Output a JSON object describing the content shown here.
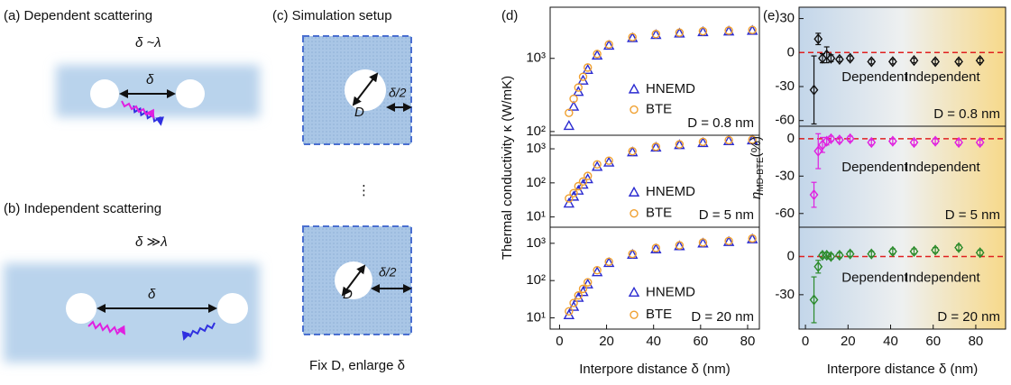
{
  "panels": {
    "a": {
      "label": "(a)  Dependent scattering",
      "relation": "δ ~λ",
      "distance": "δ"
    },
    "b": {
      "label": "(b) Independent scattering",
      "relation": "δ ≫λ",
      "distance": "δ"
    },
    "c": {
      "label": "(c)  Simulation setup",
      "pore": "D",
      "half_distance": "δ/2",
      "dots": "⋮",
      "pore_2": "D",
      "half_distance_2": "δ/2",
      "caption": "Fix D, enlarge δ"
    },
    "d": {
      "label": "(d)"
    },
    "e": {
      "label": "(e)"
    }
  },
  "chart_data": [
    {
      "type": "scatter",
      "log_y": true,
      "xlim": [
        -4,
        85
      ],
      "ylim": [
        89,
        5000
      ],
      "yticks": [
        {
          "value": 100,
          "label": "10²"
        },
        {
          "value": 1000,
          "label": "10³"
        }
      ],
      "x": [
        4,
        6,
        8,
        10,
        12,
        16,
        21,
        31,
        41,
        51,
        61,
        72,
        82
      ],
      "series": [
        {
          "name": "HNEMD",
          "color": "#2a2ad0",
          "marker": "triangle",
          "values": [
            120,
            220,
            350,
            500,
            700,
            1100,
            1500,
            1900,
            2100,
            2200,
            2300,
            2350,
            2400
          ]
        },
        {
          "name": "BTE",
          "color": "#f0a030",
          "marker": "circle",
          "values": [
            180,
            280,
            400,
            560,
            750,
            1150,
            1550,
            1950,
            2150,
            2250,
            2350,
            2400,
            2450
          ]
        }
      ],
      "annotation": "D = 0.8 nm"
    },
    {
      "type": "scatter",
      "log_y": true,
      "xlim": [
        -4,
        85
      ],
      "ylim": [
        5,
        2500
      ],
      "yticks": [
        {
          "value": 10,
          "label": "10¹"
        },
        {
          "value": 100,
          "label": "10²"
        },
        {
          "value": 1000,
          "label": "10³"
        }
      ],
      "x": [
        4,
        6,
        8,
        10,
        12,
        16,
        21,
        31,
        41,
        51,
        61,
        72,
        82
      ],
      "series": [
        {
          "name": "HNEMD",
          "color": "#2a2ad0",
          "marker": "triangle",
          "values": [
            25,
            40,
            60,
            90,
            130,
            300,
            400,
            800,
            1100,
            1300,
            1500,
            1700,
            1800
          ]
        },
        {
          "name": "BTE",
          "color": "#f0a030",
          "marker": "circle",
          "values": [
            35,
            50,
            80,
            110,
            160,
            350,
            450,
            850,
            1150,
            1350,
            1600,
            1800,
            1850
          ]
        }
      ],
      "ylabel": "Thermal conductivity κ (W/mK)",
      "annotation": "D = 5 nm"
    },
    {
      "type": "scatter",
      "log_y": true,
      "xlim": [
        -4,
        85
      ],
      "ylim": [
        5,
        2700
      ],
      "yticks": [
        {
          "value": 10,
          "label": "10¹"
        },
        {
          "value": 100,
          "label": "10²"
        },
        {
          "value": 1000,
          "label": "10³"
        }
      ],
      "xticks": [
        0,
        20,
        40,
        60,
        80
      ],
      "x": [
        4,
        6,
        8,
        10,
        12,
        16,
        21,
        31,
        41,
        51,
        61,
        72,
        82
      ],
      "series": [
        {
          "name": "HNEMD",
          "color": "#2a2ad0",
          "marker": "triangle",
          "values": [
            12,
            20,
            35,
            50,
            80,
            170,
            300,
            500,
            700,
            850,
            1000,
            1100,
            1300
          ]
        },
        {
          "name": "BTE",
          "color": "#f0a030",
          "marker": "circle",
          "values": [
            15,
            25,
            40,
            60,
            90,
            190,
            320,
            520,
            750,
            880,
            1050,
            1150,
            1350
          ]
        }
      ],
      "xlabel": "Interpore distance δ (nm)",
      "annotation": "D = 20 nm"
    },
    {
      "type": "errorbar",
      "xlim": [
        -3,
        94
      ],
      "ylim": [
        -65,
        40
      ],
      "yticks": [
        30,
        0,
        -30,
        -60
      ],
      "hline": 0,
      "hline_color": "#e02020",
      "x": [
        4,
        6,
        8,
        10,
        12,
        16,
        21,
        31,
        41,
        51,
        61,
        72,
        82
      ],
      "series": [
        {
          "color": "#111111",
          "marker": "diamond",
          "values": [
            -33,
            12,
            -5,
            -2,
            -5,
            -6,
            -5,
            -8,
            -8,
            -7,
            -8,
            -8,
            -7
          ],
          "errors": [
            30,
            5,
            4,
            7,
            3,
            2,
            2,
            2,
            2,
            2,
            2,
            2,
            2
          ]
        }
      ],
      "labels": [
        "Dependent",
        "Independent"
      ],
      "annotation": "D = 0.8 nm"
    },
    {
      "type": "errorbar",
      "xlim": [
        -3,
        94
      ],
      "ylim": [
        -71,
        10
      ],
      "yticks": [
        0,
        -30,
        -60
      ],
      "hline": 0,
      "hline_color": "#e02020",
      "x": [
        4,
        6,
        8,
        10,
        12,
        16,
        21,
        31,
        41,
        51,
        61,
        72,
        82
      ],
      "series": [
        {
          "color": "#e020e0",
          "marker": "diamond",
          "values": [
            -45,
            -10,
            -5,
            -2,
            0,
            -1,
            0,
            -3,
            -2,
            -3,
            -2,
            -3,
            -3
          ],
          "errors": [
            10,
            14,
            6,
            3,
            2,
            2,
            2,
            2,
            2,
            2,
            2,
            2,
            2
          ]
        }
      ],
      "ylabel": "η",
      "ylabel_sub": "MD-BTE",
      "ylabel_unit": "(%)",
      "labels": [
        "Dependent",
        "Independent"
      ],
      "annotation": "D = 5 nm"
    },
    {
      "type": "errorbar",
      "xlim": [
        -3,
        94
      ],
      "ylim": [
        -57,
        23
      ],
      "yticks": [
        0,
        -30
      ],
      "xticks": [
        0,
        20,
        40,
        60,
        80
      ],
      "hline": 0,
      "hline_color": "#e02020",
      "x": [
        4,
        6,
        8,
        10,
        12,
        16,
        21,
        31,
        41,
        51,
        61,
        72,
        82
      ],
      "series": [
        {
          "color": "#2a8a2a",
          "marker": "diamond",
          "values": [
            -34,
            -8,
            1,
            1,
            0,
            1,
            2,
            2,
            4,
            4,
            5,
            7,
            3
          ],
          "errors": [
            18,
            5,
            2,
            2,
            2,
            2,
            2,
            2,
            2,
            2,
            2,
            2,
            2
          ]
        }
      ],
      "xlabel": "Interpore distance δ (nm)",
      "labels": [
        "Dependent",
        "Independent"
      ],
      "annotation": "D = 20 nm"
    }
  ]
}
